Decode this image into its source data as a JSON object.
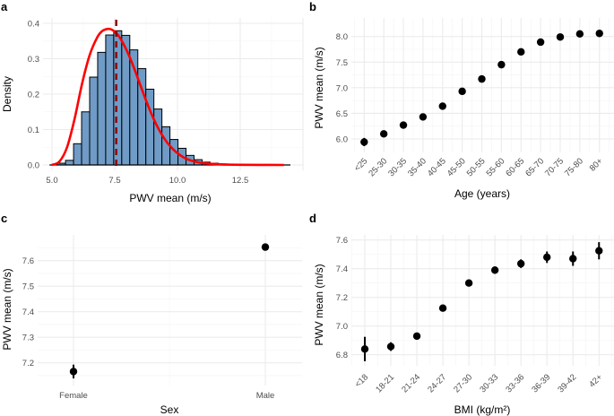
{
  "chart_data": [
    {
      "panel": "a",
      "type": "bar",
      "subtype": "histogram_with_density",
      "xlabel": "PWV mean (m/s)",
      "ylabel": "Density",
      "xlim": [
        4.75,
        14.8
      ],
      "ylim": [
        -0.015,
        0.41
      ],
      "xticks": [
        5.0,
        7.5,
        10.0,
        12.5
      ],
      "xtick_labels": [
        "5.0",
        "7.5",
        "10.0",
        "12.5"
      ],
      "yticks": [
        0.0,
        0.1,
        0.2,
        0.3,
        0.4
      ],
      "ytick_labels": [
        "0.0",
        "0.1",
        "0.2",
        "0.3",
        "0.4"
      ],
      "grid": true,
      "bin_start": 4.9,
      "bin_width": 0.32,
      "bin_densities": [
        0.0,
        0.005,
        0.013,
        0.06,
        0.15,
        0.248,
        0.318,
        0.367,
        0.379,
        0.366,
        0.325,
        0.272,
        0.214,
        0.158,
        0.108,
        0.072,
        0.047,
        0.027,
        0.015,
        0.008,
        0.005,
        0.003,
        0.002,
        0.001,
        0.001,
        0.0,
        0.0,
        0.0,
        0.0,
        0.0
      ],
      "bar_fill": "#6f9bc6",
      "bar_stroke": "#000000",
      "density_curve": {
        "color": "#ff0000",
        "x": [
          5.0,
          5.3,
          5.6,
          5.9,
          6.2,
          6.5,
          6.8,
          7.0,
          7.2,
          7.35,
          7.5,
          7.7,
          8.0,
          8.3,
          8.6,
          8.9,
          9.2,
          9.5,
          9.8,
          10.1,
          10.4,
          10.8,
          11.2,
          11.8,
          12.5,
          13.3,
          14.24
        ],
        "y": [
          0.0,
          0.01,
          0.05,
          0.13,
          0.23,
          0.31,
          0.36,
          0.378,
          0.384,
          0.383,
          0.376,
          0.36,
          0.32,
          0.268,
          0.21,
          0.155,
          0.108,
          0.072,
          0.046,
          0.028,
          0.016,
          0.008,
          0.004,
          0.0015,
          0.0005,
          0.0002,
          0.0
        ]
      },
      "mean_line": {
        "x": 7.56,
        "color": "#8b0000",
        "style": "dashed"
      }
    },
    {
      "panel": "b",
      "type": "scatter",
      "subtype": "point_with_errorbar",
      "xlabel": "Age (years)",
      "ylabel": "PWV mean (m/s)",
      "categories": [
        "<25",
        "25-30",
        "30-35",
        "35-40",
        "40-45",
        "45-50",
        "50-55",
        "55-60",
        "60-65",
        "65-70",
        "70-75",
        "75-80",
        "80+"
      ],
      "values": [
        5.94,
        6.1,
        6.27,
        6.43,
        6.64,
        6.93,
        7.17,
        7.45,
        7.7,
        7.89,
        7.99,
        8.05,
        8.06
      ],
      "errors": [
        0.08,
        0.03,
        0.025,
        0.025,
        0.025,
        0.025,
        0.025,
        0.025,
        0.025,
        0.025,
        0.025,
        0.03,
        0.07
      ],
      "ylim": [
        5.75,
        8.25
      ],
      "yticks": [
        6.0,
        6.5,
        7.0,
        7.5,
        8.0
      ],
      "ytick_labels": [
        "6.0",
        "6.5",
        "7.0",
        "7.5",
        "8.0"
      ],
      "grid": true
    },
    {
      "panel": "c",
      "type": "scatter",
      "subtype": "point_with_errorbar",
      "xlabel": "Sex",
      "ylabel": "PWV mean (m/s)",
      "categories": [
        "Female",
        "Male"
      ],
      "values": [
        7.166,
        7.653
      ],
      "errors": [
        0.027,
        0.014
      ],
      "ylim": [
        7.12,
        7.7
      ],
      "yticks": [
        7.2,
        7.3,
        7.4,
        7.5,
        7.6
      ],
      "ytick_labels": [
        "7.2",
        "7.3",
        "7.4",
        "7.5",
        "7.6"
      ],
      "grid": true
    },
    {
      "panel": "d",
      "type": "scatter",
      "subtype": "point_with_errorbar",
      "xlabel": "BMI (kg/m²)",
      "ylabel": "PWV mean (m/s)",
      "categories": [
        "<18",
        "18-21",
        "21-24",
        "24-27",
        "27-30",
        "30-33",
        "33-36",
        "36-39",
        "39-42",
        "42+"
      ],
      "values": [
        6.84,
        6.857,
        6.93,
        7.125,
        7.3,
        7.39,
        7.435,
        7.48,
        7.47,
        7.525
      ],
      "errors": [
        0.085,
        0.03,
        0.025,
        0.02,
        0.02,
        0.025,
        0.03,
        0.04,
        0.05,
        0.06
      ],
      "ylim": [
        6.74,
        7.62
      ],
      "yticks": [
        6.8,
        7.0,
        7.2,
        7.4,
        7.6
      ],
      "ytick_labels": [
        "6.8",
        "7.0",
        "7.2",
        "7.4",
        "7.6"
      ],
      "grid": true
    }
  ],
  "panel_labels": [
    "a",
    "b",
    "c",
    "d"
  ]
}
